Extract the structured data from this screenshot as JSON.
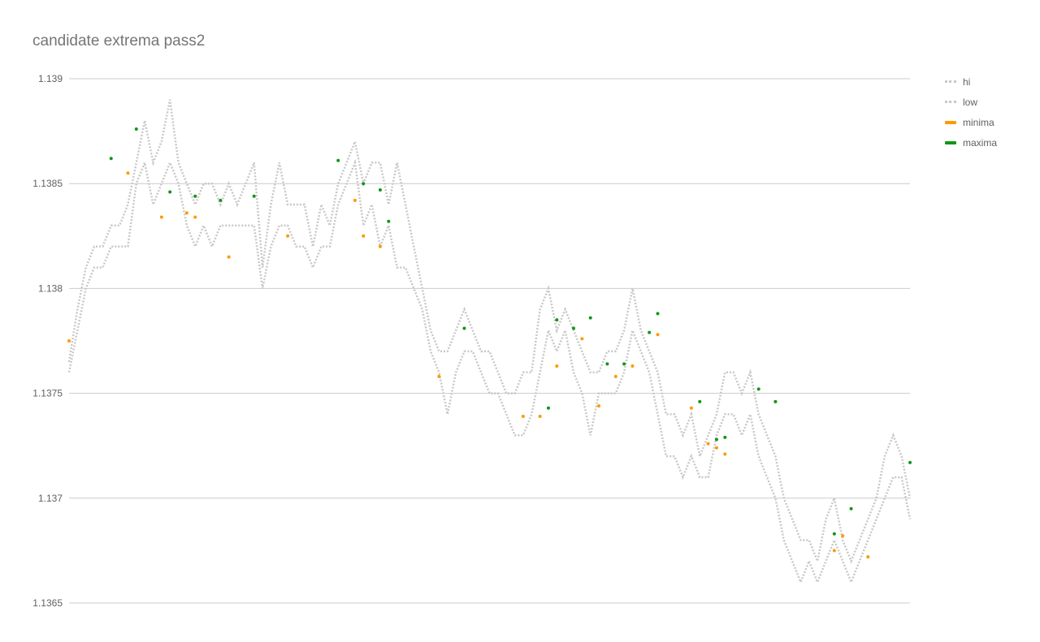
{
  "chart_data": {
    "type": "line",
    "title": "candidate extrema pass2",
    "xlabel": "",
    "ylabel": "",
    "ylim": [
      1.1365,
      1.139
    ],
    "yticks": [
      "1.139",
      "1.1385",
      "1.138",
      "1.1375",
      "1.137",
      "1.1365"
    ],
    "grid": true,
    "legend_position": "right",
    "x_range": [
      0,
      100
    ],
    "series": [
      {
        "name": "hi",
        "color": "#c8c8c8",
        "style": "dotted",
        "points": [
          [
            0,
            1.13765
          ],
          [
            1,
            1.1379
          ],
          [
            2,
            1.1381
          ],
          [
            3,
            1.1382
          ],
          [
            4,
            1.1382
          ],
          [
            5,
            1.1383
          ],
          [
            6,
            1.1383
          ],
          [
            7,
            1.1384
          ],
          [
            8,
            1.1386
          ],
          [
            9,
            1.1388
          ],
          [
            10,
            1.1386
          ],
          [
            11,
            1.1387
          ],
          [
            12,
            1.1389
          ],
          [
            13,
            1.1386
          ],
          [
            14,
            1.1385
          ],
          [
            15,
            1.1384
          ],
          [
            16,
            1.1385
          ],
          [
            17,
            1.1385
          ],
          [
            18,
            1.1384
          ],
          [
            19,
            1.1385
          ],
          [
            20,
            1.1384
          ],
          [
            21,
            1.1385
          ],
          [
            22,
            1.1386
          ],
          [
            23,
            1.1381
          ],
          [
            24,
            1.1384
          ],
          [
            25,
            1.1386
          ],
          [
            26,
            1.1384
          ],
          [
            27,
            1.1384
          ],
          [
            28,
            1.1384
          ],
          [
            29,
            1.1382
          ],
          [
            30,
            1.1384
          ],
          [
            31,
            1.1383
          ],
          [
            32,
            1.1385
          ],
          [
            33,
            1.1386
          ],
          [
            34,
            1.1387
          ],
          [
            35,
            1.1385
          ],
          [
            36,
            1.1386
          ],
          [
            37,
            1.1386
          ],
          [
            38,
            1.1384
          ],
          [
            39,
            1.1386
          ],
          [
            40,
            1.1384
          ],
          [
            41,
            1.1382
          ],
          [
            42,
            1.138
          ],
          [
            43,
            1.1378
          ],
          [
            44,
            1.1377
          ],
          [
            45,
            1.1377
          ],
          [
            46,
            1.1378
          ],
          [
            47,
            1.1379
          ],
          [
            48,
            1.1378
          ],
          [
            49,
            1.1377
          ],
          [
            50,
            1.1377
          ],
          [
            51,
            1.1376
          ],
          [
            52,
            1.1375
          ],
          [
            53,
            1.1375
          ],
          [
            54,
            1.1376
          ],
          [
            55,
            1.1376
          ],
          [
            56,
            1.1379
          ],
          [
            57,
            1.138
          ],
          [
            58,
            1.1378
          ],
          [
            59,
            1.1379
          ],
          [
            60,
            1.1378
          ],
          [
            61,
            1.1377
          ],
          [
            62,
            1.1376
          ],
          [
            63,
            1.1376
          ],
          [
            64,
            1.1377
          ],
          [
            65,
            1.1377
          ],
          [
            66,
            1.1378
          ],
          [
            67,
            1.138
          ],
          [
            68,
            1.1378
          ],
          [
            69,
            1.1377
          ],
          [
            70,
            1.1376
          ],
          [
            71,
            1.1374
          ],
          [
            72,
            1.1374
          ],
          [
            73,
            1.1373
          ],
          [
            74,
            1.1374
          ],
          [
            75,
            1.1372
          ],
          [
            76,
            1.1373
          ],
          [
            77,
            1.1374
          ],
          [
            78,
            1.1376
          ],
          [
            79,
            1.1376
          ],
          [
            80,
            1.1375
          ],
          [
            81,
            1.1376
          ],
          [
            82,
            1.1374
          ],
          [
            83,
            1.1373
          ],
          [
            84,
            1.1372
          ],
          [
            85,
            1.137
          ],
          [
            86,
            1.1369
          ],
          [
            87,
            1.1368
          ],
          [
            88,
            1.1368
          ],
          [
            89,
            1.1367
          ],
          [
            90,
            1.1369
          ],
          [
            91,
            1.137
          ],
          [
            92,
            1.1368
          ],
          [
            93,
            1.1367
          ],
          [
            94,
            1.1368
          ],
          [
            95,
            1.1369
          ],
          [
            96,
            1.137
          ],
          [
            97,
            1.1372
          ],
          [
            98,
            1.1373
          ],
          [
            99,
            1.1372
          ],
          [
            100,
            1.137
          ]
        ]
      },
      {
        "name": "low",
        "color": "#c8c8c8",
        "style": "dotted",
        "points": [
          [
            0,
            1.1376
          ],
          [
            1,
            1.1378
          ],
          [
            2,
            1.138
          ],
          [
            3,
            1.1381
          ],
          [
            4,
            1.1381
          ],
          [
            5,
            1.1382
          ],
          [
            6,
            1.1382
          ],
          [
            7,
            1.1382
          ],
          [
            8,
            1.1385
          ],
          [
            9,
            1.1386
          ],
          [
            10,
            1.1384
          ],
          [
            11,
            1.1385
          ],
          [
            12,
            1.1386
          ],
          [
            13,
            1.1385
          ],
          [
            14,
            1.1383
          ],
          [
            15,
            1.1382
          ],
          [
            16,
            1.1383
          ],
          [
            17,
            1.1382
          ],
          [
            18,
            1.1383
          ],
          [
            19,
            1.1383
          ],
          [
            20,
            1.1383
          ],
          [
            21,
            1.1383
          ],
          [
            22,
            1.1383
          ],
          [
            23,
            1.138
          ],
          [
            24,
            1.1382
          ],
          [
            25,
            1.1383
          ],
          [
            26,
            1.1383
          ],
          [
            27,
            1.1382
          ],
          [
            28,
            1.1382
          ],
          [
            29,
            1.1381
          ],
          [
            30,
            1.1382
          ],
          [
            31,
            1.1382
          ],
          [
            32,
            1.1384
          ],
          [
            33,
            1.1385
          ],
          [
            34,
            1.1386
          ],
          [
            35,
            1.1383
          ],
          [
            36,
            1.1384
          ],
          [
            37,
            1.1382
          ],
          [
            38,
            1.1383
          ],
          [
            39,
            1.1381
          ],
          [
            40,
            1.1381
          ],
          [
            41,
            1.138
          ],
          [
            42,
            1.1379
          ],
          [
            43,
            1.1377
          ],
          [
            44,
            1.1376
          ],
          [
            45,
            1.1374
          ],
          [
            46,
            1.1376
          ],
          [
            47,
            1.1377
          ],
          [
            48,
            1.1377
          ],
          [
            49,
            1.1376
          ],
          [
            50,
            1.1375
          ],
          [
            51,
            1.1375
          ],
          [
            52,
            1.1374
          ],
          [
            53,
            1.1373
          ],
          [
            54,
            1.1373
          ],
          [
            55,
            1.1374
          ],
          [
            56,
            1.1376
          ],
          [
            57,
            1.1378
          ],
          [
            58,
            1.1377
          ],
          [
            59,
            1.1378
          ],
          [
            60,
            1.1376
          ],
          [
            61,
            1.1375
          ],
          [
            62,
            1.1373
          ],
          [
            63,
            1.1375
          ],
          [
            64,
            1.1375
          ],
          [
            65,
            1.1375
          ],
          [
            66,
            1.1376
          ],
          [
            67,
            1.1378
          ],
          [
            68,
            1.1377
          ],
          [
            69,
            1.1376
          ],
          [
            70,
            1.1374
          ],
          [
            71,
            1.1372
          ],
          [
            72,
            1.1372
          ],
          [
            73,
            1.1371
          ],
          [
            74,
            1.1372
          ],
          [
            75,
            1.1371
          ],
          [
            76,
            1.1371
          ],
          [
            77,
            1.1373
          ],
          [
            78,
            1.1374
          ],
          [
            79,
            1.1374
          ],
          [
            80,
            1.1373
          ],
          [
            81,
            1.1374
          ],
          [
            82,
            1.1372
          ],
          [
            83,
            1.1371
          ],
          [
            84,
            1.137
          ],
          [
            85,
            1.1368
          ],
          [
            86,
            1.1367
          ],
          [
            87,
            1.1366
          ],
          [
            88,
            1.1367
          ],
          [
            89,
            1.1366
          ],
          [
            90,
            1.1367
          ],
          [
            91,
            1.1368
          ],
          [
            92,
            1.1367
          ],
          [
            93,
            1.1366
          ],
          [
            94,
            1.1367
          ],
          [
            95,
            1.1368
          ],
          [
            96,
            1.1369
          ],
          [
            97,
            1.137
          ],
          [
            98,
            1.1371
          ],
          [
            99,
            1.1371
          ],
          [
            100,
            1.1369
          ]
        ]
      },
      {
        "name": "minima",
        "color": "#ff9900",
        "style": "points",
        "points": [
          [
            0,
            1.13775
          ],
          [
            7,
            1.13855
          ],
          [
            11,
            1.13834
          ],
          [
            14,
            1.13836
          ],
          [
            15,
            1.13834
          ],
          [
            19,
            1.13815
          ],
          [
            26,
            1.13825
          ],
          [
            34,
            1.13842
          ],
          [
            35,
            1.13825
          ],
          [
            37,
            1.1382
          ],
          [
            44,
            1.13758
          ],
          [
            54,
            1.13739
          ],
          [
            56,
            1.13739
          ],
          [
            58,
            1.13763
          ],
          [
            61,
            1.13776
          ],
          [
            63,
            1.13744
          ],
          [
            65,
            1.13758
          ],
          [
            67,
            1.13763
          ],
          [
            70,
            1.13778
          ],
          [
            74,
            1.13743
          ],
          [
            76,
            1.13726
          ],
          [
            77,
            1.13724
          ],
          [
            78,
            1.13721
          ],
          [
            84,
            1.13746
          ],
          [
            91,
            1.13675
          ],
          [
            92,
            1.13682
          ],
          [
            95,
            1.13672
          ]
        ]
      },
      {
        "name": "maxima",
        "color": "#109618",
        "style": "points",
        "points": [
          [
            5,
            1.13862
          ],
          [
            8,
            1.13876
          ],
          [
            12,
            1.13846
          ],
          [
            15,
            1.13844
          ],
          [
            18,
            1.13842
          ],
          [
            22,
            1.13844
          ],
          [
            32,
            1.13861
          ],
          [
            35,
            1.1385
          ],
          [
            37,
            1.13847
          ],
          [
            38,
            1.13832
          ],
          [
            47,
            1.13781
          ],
          [
            57,
            1.13743
          ],
          [
            58,
            1.13785
          ],
          [
            60,
            1.13781
          ],
          [
            62,
            1.13786
          ],
          [
            64,
            1.13764
          ],
          [
            66,
            1.13764
          ],
          [
            69,
            1.13779
          ],
          [
            70,
            1.13788
          ],
          [
            75,
            1.13746
          ],
          [
            77,
            1.13728
          ],
          [
            78,
            1.13729
          ],
          [
            82,
            1.13752
          ],
          [
            84,
            1.13746
          ],
          [
            91,
            1.13683
          ],
          [
            93,
            1.13695
          ],
          [
            100,
            1.13717
          ]
        ]
      }
    ]
  },
  "legend": {
    "items": [
      {
        "label": "hi",
        "color": "#c8c8c8",
        "kind": "dotted"
      },
      {
        "label": "low",
        "color": "#c8c8c8",
        "kind": "dotted"
      },
      {
        "label": "minima",
        "color": "#ff9900",
        "kind": "solid"
      },
      {
        "label": "maxima",
        "color": "#109618",
        "kind": "solid"
      }
    ]
  }
}
